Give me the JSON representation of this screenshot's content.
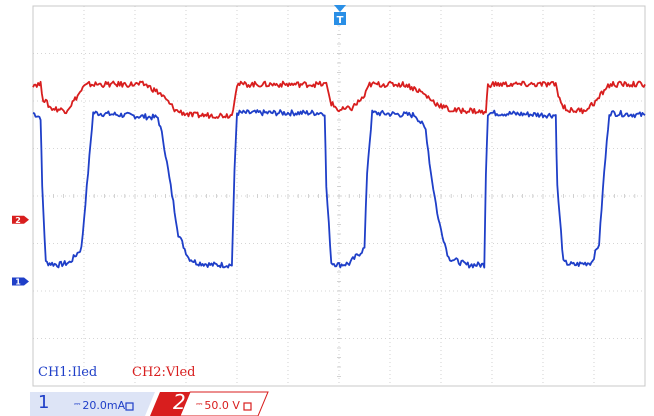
{
  "trigger_marker": {
    "icon": "trigger-t-icon",
    "text": "T",
    "color": "#2a8fe6"
  },
  "channels": [
    {
      "id": "ch1",
      "marker_text": "1",
      "label": "CH1:Iled",
      "number": "1",
      "coupling": "⎓",
      "scale": "20.0mA",
      "color": "#1f3fc8",
      "level_division": -1.8
    },
    {
      "id": "ch2",
      "marker_text": "2",
      "label": "CH2:Vled",
      "number": "2",
      "coupling": "⎓",
      "scale": "50.0 V",
      "color": "#d81e1e",
      "level_division": -0.5
    }
  ],
  "status_bar": {
    "ch1_bg": "#dde4f6",
    "ch2_bg": "#d81e1e"
  },
  "chart_data": {
    "type": "line",
    "grid": true,
    "x_divisions": 12,
    "y_divisions": 8,
    "ylim": [
      -4,
      4
    ],
    "series": [
      {
        "name": "CH1:Iled",
        "color": "#1f3fc8",
        "points": [
          [
            0,
            1.75
          ],
          [
            0.15,
            1.65
          ],
          [
            0.18,
            0.2
          ],
          [
            0.25,
            -1.4
          ],
          [
            0.5,
            -1.45
          ],
          [
            0.72,
            -1.4
          ],
          [
            0.95,
            -1.1
          ],
          [
            1.08,
            0.5
          ],
          [
            1.18,
            1.75
          ],
          [
            2.45,
            1.65
          ],
          [
            2.55,
            1.2
          ],
          [
            2.7,
            0.2
          ],
          [
            2.85,
            -0.8
          ],
          [
            3.05,
            -1.3
          ],
          [
            3.2,
            -1.4
          ],
          [
            3.5,
            -1.45
          ],
          [
            3.9,
            -1.45
          ],
          [
            3.95,
            0.5
          ],
          [
            4.0,
            1.75
          ],
          [
            5.72,
            1.75
          ],
          [
            5.75,
            0.2
          ],
          [
            5.85,
            -1.4
          ],
          [
            6.0,
            -1.45
          ],
          [
            6.2,
            -1.42
          ],
          [
            6.5,
            -1.1
          ],
          [
            6.55,
            0.5
          ],
          [
            6.65,
            1.75
          ],
          [
            7.5,
            1.7
          ],
          [
            7.7,
            1.4
          ],
          [
            7.8,
            0.5
          ],
          [
            7.95,
            -0.5
          ],
          [
            8.15,
            -1.3
          ],
          [
            8.5,
            -1.45
          ],
          [
            8.85,
            -1.45
          ],
          [
            8.88,
            0.5
          ],
          [
            8.92,
            1.75
          ],
          [
            10.25,
            1.7
          ],
          [
            10.28,
            0.2
          ],
          [
            10.4,
            -1.4
          ],
          [
            10.6,
            -1.45
          ],
          [
            10.95,
            -1.4
          ],
          [
            11.1,
            -1.0
          ],
          [
            11.2,
            0.5
          ],
          [
            11.3,
            1.75
          ],
          [
            12,
            1.7
          ]
        ]
      },
      {
        "name": "CH2:Vled",
        "color": "#d81e1e",
        "points": [
          [
            0,
            2.35
          ],
          [
            0.15,
            2.35
          ],
          [
            0.2,
            2.05
          ],
          [
            0.35,
            1.85
          ],
          [
            0.65,
            1.8
          ],
          [
            0.8,
            2.0
          ],
          [
            1.0,
            2.3
          ],
          [
            1.1,
            2.35
          ],
          [
            2.2,
            2.35
          ],
          [
            2.5,
            2.15
          ],
          [
            2.8,
            1.8
          ],
          [
            3.1,
            1.7
          ],
          [
            3.45,
            1.7
          ],
          [
            3.9,
            1.7
          ],
          [
            3.95,
            2.05
          ],
          [
            4.0,
            2.35
          ],
          [
            5.75,
            2.35
          ],
          [
            5.85,
            1.95
          ],
          [
            6.0,
            1.8
          ],
          [
            6.25,
            1.85
          ],
          [
            6.5,
            2.1
          ],
          [
            6.6,
            2.35
          ],
          [
            7.3,
            2.35
          ],
          [
            7.6,
            2.2
          ],
          [
            7.9,
            1.95
          ],
          [
            8.2,
            1.8
          ],
          [
            8.6,
            1.8
          ],
          [
            8.88,
            1.75
          ],
          [
            8.92,
            2.35
          ],
          [
            10.25,
            2.35
          ],
          [
            10.35,
            1.95
          ],
          [
            10.5,
            1.8
          ],
          [
            10.8,
            1.8
          ],
          [
            11.05,
            2.0
          ],
          [
            11.25,
            2.3
          ],
          [
            11.35,
            2.35
          ],
          [
            12,
            2.35
          ]
        ]
      }
    ]
  }
}
